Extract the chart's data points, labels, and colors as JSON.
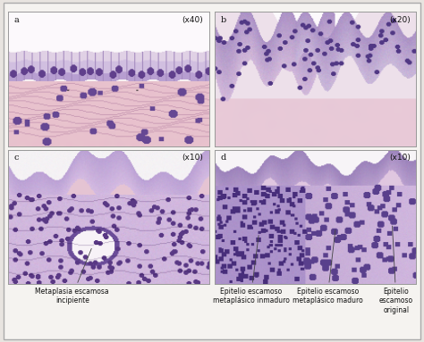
{
  "figure_bg": "#f5f3f0",
  "border_color": "#aaaaaa",
  "panel_border": "#999999",
  "panels": [
    {
      "label": "a",
      "magnification": "(x40)",
      "row": 0,
      "col": 0
    },
    {
      "label": "b",
      "magnification": "(x20)",
      "row": 0,
      "col": 1
    },
    {
      "label": "c",
      "magnification": "(x10)",
      "row": 1,
      "col": 0
    },
    {
      "label": "d",
      "magnification": "(x10)",
      "row": 1,
      "col": 1
    }
  ],
  "label_fontsize": 7,
  "mag_fontsize": 6.5,
  "annot_fontsize": 5.5,
  "text_color": "#111111",
  "outer_bg": "#e8e4e0",
  "white_bg": "#f8f7f5"
}
